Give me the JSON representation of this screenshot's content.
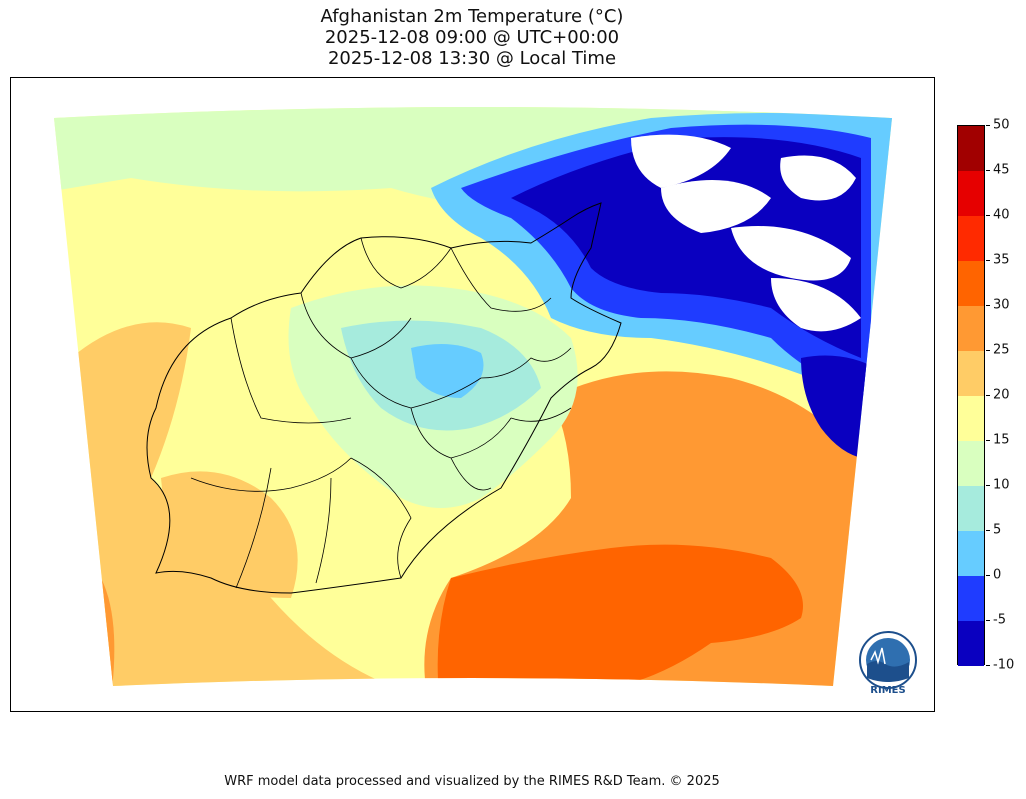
{
  "title": {
    "line1": "Afghanistan 2m Temperature (°C)",
    "line2": "2025-12-08 09:00 @ UTC+00:00",
    "line3": "2025-12-08 13:30 @ Local Time"
  },
  "colorbar": {
    "levels": [
      "50",
      "45",
      "40",
      "35",
      "30",
      "25",
      "20",
      "15",
      "10",
      "5",
      "0",
      "-5",
      "-10"
    ],
    "colors": [
      "#a10000",
      "#e60000",
      "#ff2a00",
      "#ff6400",
      "#ff9933",
      "#ffcc66",
      "#ffff99",
      "#d9ffbf",
      "#a6ebdd",
      "#66ccff",
      "#1f3cff",
      "#0a00c0"
    ]
  },
  "logo": {
    "text": "RIMES",
    "ring_text": "Regional Integrated Multi-Hazard Early Warning System"
  },
  "footer": "WRF model data processed and visualized by the RIMES R&D Team. © 2025"
}
